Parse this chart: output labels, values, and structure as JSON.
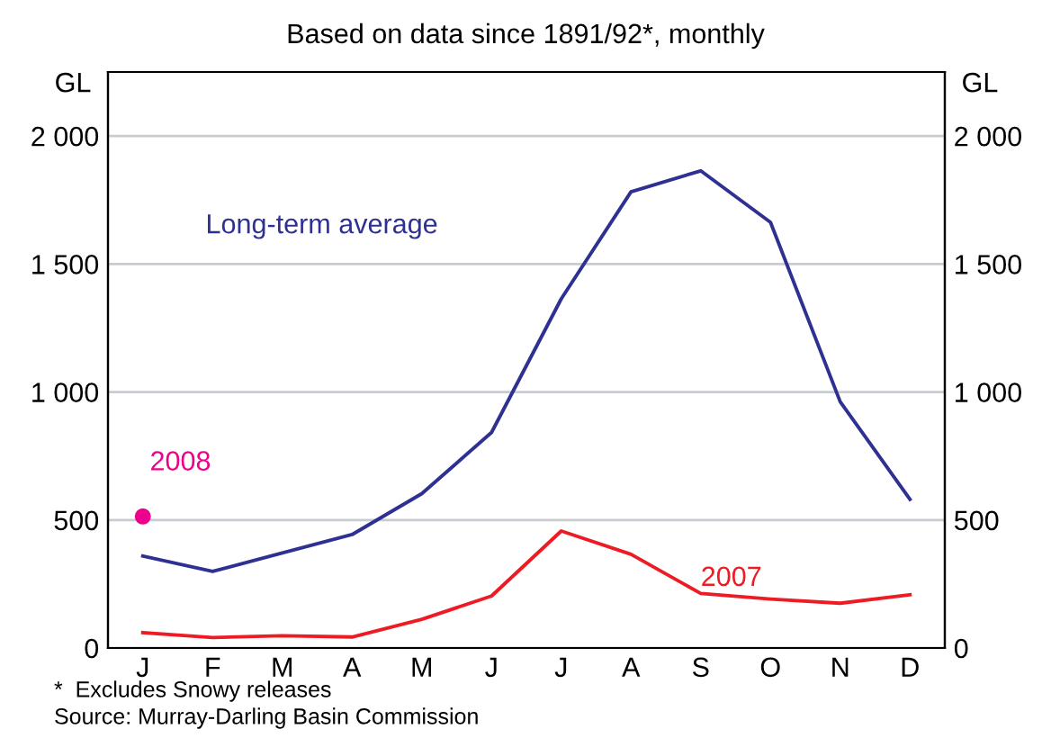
{
  "chart_data": {
    "type": "line",
    "subtitle": "Based on data since 1891/92*, monthly",
    "ylabel": "GL",
    "y2label": "GL",
    "categories": [
      "J",
      "F",
      "M",
      "A",
      "M",
      "J",
      "J",
      "A",
      "S",
      "O",
      "N",
      "D"
    ],
    "series": [
      {
        "name": "Long-term average",
        "color": "#2e3192",
        "values": [
          359,
          299,
          371,
          443,
          603,
          842,
          1364,
          1782,
          1864,
          1663,
          962,
          581
        ]
      },
      {
        "name": "2007",
        "color": "#ed1c24",
        "values": [
          60,
          41,
          48,
          43,
          112,
          203,
          457,
          366,
          213,
          191,
          175,
          208
        ]
      },
      {
        "name": "2008",
        "type": "scatter",
        "color": "#ec008c",
        "marker": "circle",
        "values": [
          514,
          null,
          null,
          null,
          null,
          null,
          null,
          null,
          null,
          null,
          null,
          null
        ]
      }
    ],
    "ylim": [
      0,
      2250
    ],
    "yticks": [
      0,
      500,
      {
        "value": 1000,
        "label": "1 000"
      },
      {
        "value": 1500,
        "label": "1 500"
      },
      {
        "value": 2000,
        "label": "2 000"
      }
    ],
    "y2lim": [
      0,
      2250
    ],
    "y2ticks": [
      0,
      500,
      {
        "value": 1000,
        "label": "1 000"
      },
      {
        "value": 1500,
        "label": "1 500"
      },
      {
        "value": 2000,
        "label": "2 000"
      }
    ],
    "grid": "y",
    "legend": false,
    "annotations": [
      "*  Excludes Snowy releases",
      "Source: Murray-Darling Basin Commission"
    ]
  }
}
